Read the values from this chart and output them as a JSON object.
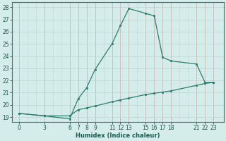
{
  "xlabel": "Humidex (Indice chaleur)",
  "bg_color": "#d4ecea",
  "grid_color_h": "#c2d8d6",
  "grid_color_v": "#c8b8b8",
  "line_color": "#2e7d6e",
  "x_ticks": [
    0,
    3,
    6,
    7,
    8,
    9,
    11,
    12,
    13,
    15,
    16,
    17,
    18,
    21,
    22,
    23
  ],
  "y_ticks": [
    19,
    20,
    21,
    22,
    23,
    24,
    25,
    26,
    27,
    28
  ],
  "ylim": [
    18.6,
    28.4
  ],
  "xlim": [
    -0.8,
    24.2
  ],
  "curve1_x": [
    0,
    3,
    6,
    7,
    8,
    9,
    11,
    12,
    13,
    15,
    16,
    17,
    18,
    21,
    22,
    23
  ],
  "curve1_y": [
    19.3,
    19.1,
    18.85,
    20.5,
    21.4,
    22.9,
    25.0,
    26.5,
    27.9,
    27.5,
    27.3,
    23.9,
    23.6,
    23.35,
    21.85,
    21.85
  ],
  "curve2_x": [
    0,
    3,
    6,
    7,
    8,
    9,
    11,
    12,
    13,
    15,
    16,
    17,
    18,
    21,
    22,
    23
  ],
  "curve2_y": [
    19.3,
    19.1,
    19.1,
    19.6,
    19.75,
    19.9,
    20.25,
    20.4,
    20.55,
    20.85,
    20.95,
    21.05,
    21.15,
    21.6,
    21.75,
    21.85
  ]
}
